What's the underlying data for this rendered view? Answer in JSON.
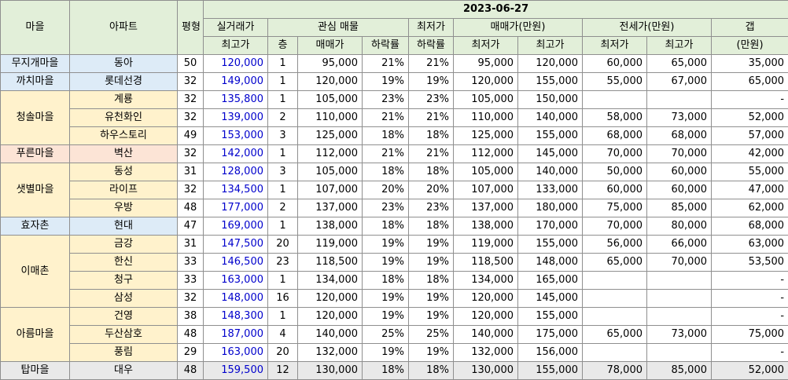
{
  "header": {
    "date": "2023-06-27",
    "village": "마을",
    "apartment": "아파트",
    "pyeong": "평형",
    "actual_line1": "실거래가",
    "actual_line2": "최고가",
    "interest_group": "관심 매물",
    "floor": "층",
    "sale_price": "매매가",
    "drop_rate": "하락률",
    "lowest_line1": "최저가",
    "lowest_line2": "하락률",
    "sale_group": "매매가(만원)",
    "sale_min": "최저가",
    "sale_max": "최고가",
    "jeonse_group": "전세가(만원)",
    "jeonse_min": "최저가",
    "jeonse_max": "최고가",
    "gap_line1": "갭",
    "gap_line2": "(만원)"
  },
  "groups": [
    {
      "village": "무지개마을",
      "color": "#ddebf7",
      "rows": [
        {
          "apt": "동아",
          "pyeong": "50",
          "actual_max": "120,000",
          "floor": "1",
          "price": "95,000",
          "drop": "21%",
          "min_drop": "21%",
          "sale_min": "95,000",
          "sale_max": "120,000",
          "jeonse_min": "60,000",
          "jeonse_max": "65,000",
          "gap": "35,000"
        }
      ]
    },
    {
      "village": "까치마을",
      "color": "#ddebf7",
      "rows": [
        {
          "apt": "롯데선경",
          "pyeong": "32",
          "actual_max": "149,000",
          "floor": "1",
          "price": "120,000",
          "drop": "19%",
          "min_drop": "19%",
          "sale_min": "120,000",
          "sale_max": "155,000",
          "jeonse_min": "55,000",
          "jeonse_max": "67,000",
          "gap": "65,000"
        }
      ]
    },
    {
      "village": "청솔마을",
      "color": "#fff2cc",
      "rows": [
        {
          "apt": "계룡",
          "pyeong": "32",
          "actual_max": "135,800",
          "floor": "1",
          "price": "105,000",
          "drop": "23%",
          "min_drop": "23%",
          "sale_min": "105,000",
          "sale_max": "150,000",
          "jeonse_min": "",
          "jeonse_max": "",
          "gap": "-"
        },
        {
          "apt": "유천화인",
          "pyeong": "32",
          "actual_max": "139,000",
          "floor": "2",
          "price": "110,000",
          "drop": "21%",
          "min_drop": "21%",
          "sale_min": "110,000",
          "sale_max": "140,000",
          "jeonse_min": "58,000",
          "jeonse_max": "73,000",
          "gap": "52,000"
        },
        {
          "apt": "하우스토리",
          "pyeong": "49",
          "actual_max": "153,000",
          "floor": "3",
          "price": "125,000",
          "drop": "18%",
          "min_drop": "18%",
          "sale_min": "125,000",
          "sale_max": "155,000",
          "jeonse_min": "68,000",
          "jeonse_max": "68,000",
          "gap": "57,000"
        }
      ]
    },
    {
      "village": "푸른마을",
      "color": "#fce4d6",
      "rows": [
        {
          "apt": "벽산",
          "pyeong": "32",
          "actual_max": "142,000",
          "floor": "1",
          "price": "112,000",
          "drop": "21%",
          "min_drop": "21%",
          "sale_min": "112,000",
          "sale_max": "145,000",
          "jeonse_min": "70,000",
          "jeonse_max": "70,000",
          "gap": "42,000"
        }
      ]
    },
    {
      "village": "샛별마을",
      "color": "#fff2cc",
      "rows": [
        {
          "apt": "동성",
          "pyeong": "31",
          "actual_max": "128,000",
          "floor": "3",
          "price": "105,000",
          "drop": "18%",
          "min_drop": "18%",
          "sale_min": "105,000",
          "sale_max": "140,000",
          "jeonse_min": "50,000",
          "jeonse_max": "60,000",
          "gap": "55,000"
        },
        {
          "apt": "라이프",
          "pyeong": "32",
          "actual_max": "134,500",
          "floor": "1",
          "price": "107,000",
          "drop": "20%",
          "min_drop": "20%",
          "sale_min": "107,000",
          "sale_max": "133,000",
          "jeonse_min": "60,000",
          "jeonse_max": "60,000",
          "gap": "47,000"
        },
        {
          "apt": "우방",
          "pyeong": "48",
          "actual_max": "177,000",
          "floor": "2",
          "price": "137,000",
          "drop": "23%",
          "min_drop": "23%",
          "sale_min": "137,000",
          "sale_max": "180,000",
          "jeonse_min": "75,000",
          "jeonse_max": "85,000",
          "gap": "62,000"
        }
      ]
    },
    {
      "village": "효자촌",
      "color": "#ddebf7",
      "rows": [
        {
          "apt": "현대",
          "pyeong": "47",
          "actual_max": "169,000",
          "floor": "1",
          "price": "138,000",
          "drop": "18%",
          "min_drop": "18%",
          "sale_min": "138,000",
          "sale_max": "170,000",
          "jeonse_min": "70,000",
          "jeonse_max": "80,000",
          "gap": "68,000"
        }
      ]
    },
    {
      "village": "이매촌",
      "color": "#fff2cc",
      "rows": [
        {
          "apt": "금강",
          "pyeong": "31",
          "actual_max": "147,500",
          "floor": "20",
          "price": "119,000",
          "drop": "19%",
          "min_drop": "19%",
          "sale_min": "119,000",
          "sale_max": "155,000",
          "jeonse_min": "56,000",
          "jeonse_max": "66,000",
          "gap": "63,000"
        },
        {
          "apt": "한신",
          "pyeong": "33",
          "actual_max": "146,500",
          "floor": "23",
          "price": "118,500",
          "drop": "19%",
          "min_drop": "19%",
          "sale_min": "118,500",
          "sale_max": "148,000",
          "jeonse_min": "65,000",
          "jeonse_max": "70,000",
          "gap": "53,500"
        },
        {
          "apt": "청구",
          "pyeong": "33",
          "actual_max": "163,000",
          "floor": "1",
          "price": "134,000",
          "drop": "18%",
          "min_drop": "18%",
          "sale_min": "134,000",
          "sale_max": "165,000",
          "jeonse_min": "",
          "jeonse_max": "",
          "gap": "-"
        },
        {
          "apt": "삼성",
          "pyeong": "32",
          "actual_max": "148,000",
          "floor": "16",
          "price": "120,000",
          "drop": "19%",
          "min_drop": "19%",
          "sale_min": "120,000",
          "sale_max": "145,000",
          "jeonse_min": "",
          "jeonse_max": "",
          "gap": "-"
        }
      ]
    },
    {
      "village": "아름마을",
      "color": "#fff2cc",
      "rows": [
        {
          "apt": "건영",
          "pyeong": "38",
          "actual_max": "148,300",
          "floor": "1",
          "price": "120,000",
          "drop": "19%",
          "min_drop": "19%",
          "sale_min": "120,000",
          "sale_max": "155,000",
          "jeonse_min": "",
          "jeonse_max": "",
          "gap": "-"
        },
        {
          "apt": "두산삼호",
          "pyeong": "48",
          "actual_max": "187,000",
          "floor": "4",
          "price": "140,000",
          "drop": "25%",
          "min_drop": "25%",
          "sale_min": "140,000",
          "sale_max": "175,000",
          "jeonse_min": "65,000",
          "jeonse_max": "73,000",
          "gap": "75,000"
        },
        {
          "apt": "풍림",
          "pyeong": "29",
          "actual_max": "163,000",
          "floor": "20",
          "price": "132,000",
          "drop": "19%",
          "min_drop": "19%",
          "sale_min": "132,000",
          "sale_max": "156,000",
          "jeonse_min": "",
          "jeonse_max": "",
          "gap": "-"
        }
      ]
    },
    {
      "village": "탑마을",
      "color": "#e9e9e9",
      "rows": [
        {
          "apt": "대우",
          "pyeong": "48",
          "actual_max": "159,500",
          "floor": "12",
          "price": "130,000",
          "drop": "18%",
          "min_drop": "18%",
          "sale_min": "130,000",
          "sale_max": "155,000",
          "jeonse_min": "78,000",
          "jeonse_max": "85,000",
          "gap": "52,000"
        }
      ]
    }
  ]
}
